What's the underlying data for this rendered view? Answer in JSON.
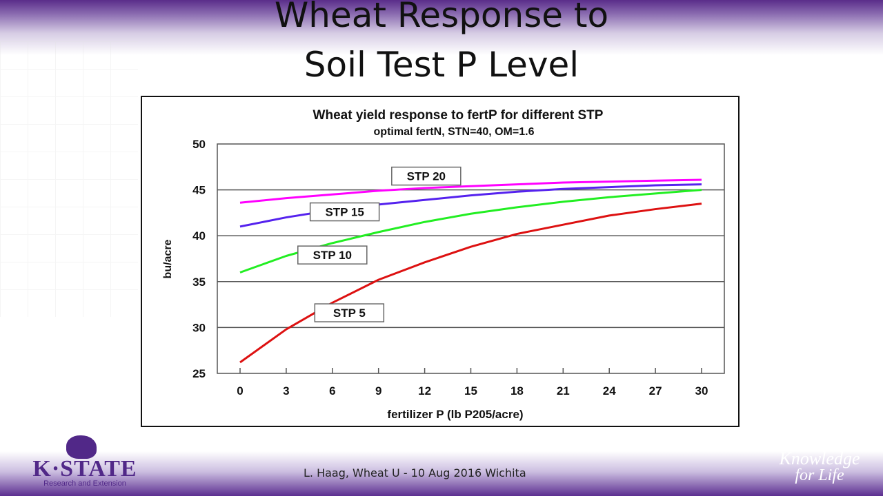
{
  "slide": {
    "title_line1": "Wheat Response to",
    "title_line2": "Soil Test P Level",
    "footer": "L. Haag, Wheat U - 10 Aug 2016 Wichita",
    "logo_text": "K·STATE",
    "logo_subtext": "Research and Extension",
    "tagline_line1": "Knowledge",
    "tagline_line2": "for Life"
  },
  "chart_data": {
    "type": "line",
    "title": "Wheat yield response to fertP for different STP",
    "subtitle": "optimal fertN, STN=40, OM=1.6",
    "xlabel": "fertilizer P (lb P205/acre)",
    "ylabel": "bu/acre",
    "xlim": [
      0,
      30
    ],
    "ylim": [
      25,
      50
    ],
    "x": [
      0,
      3,
      6,
      9,
      12,
      15,
      18,
      21,
      24,
      27,
      30
    ],
    "xticks": [
      "0",
      "3",
      "6",
      "9",
      "12",
      "15",
      "18",
      "21",
      "24",
      "27",
      "30"
    ],
    "yticks": [
      "25",
      "30",
      "35",
      "40",
      "45",
      "50"
    ],
    "grid": "horizontal",
    "series": [
      {
        "name": "STP 20",
        "color": "#ff00ff",
        "values": [
          43.6,
          44.1,
          44.5,
          44.9,
          45.2,
          45.4,
          45.6,
          45.8,
          45.9,
          46.0,
          46.1
        ]
      },
      {
        "name": "STP 15",
        "color": "#5522ee",
        "values": [
          41.0,
          42.0,
          42.8,
          43.4,
          43.9,
          44.4,
          44.8,
          45.1,
          45.3,
          45.5,
          45.6
        ]
      },
      {
        "name": "STP 10",
        "color": "#22ee22",
        "values": [
          36.0,
          37.8,
          39.2,
          40.4,
          41.5,
          42.4,
          43.1,
          43.7,
          44.2,
          44.6,
          45.0
        ]
      },
      {
        "name": "STP 5",
        "color": "#dd1111",
        "values": [
          26.2,
          29.8,
          32.7,
          35.2,
          37.1,
          38.8,
          40.2,
          41.2,
          42.2,
          42.9,
          43.5
        ]
      }
    ]
  }
}
